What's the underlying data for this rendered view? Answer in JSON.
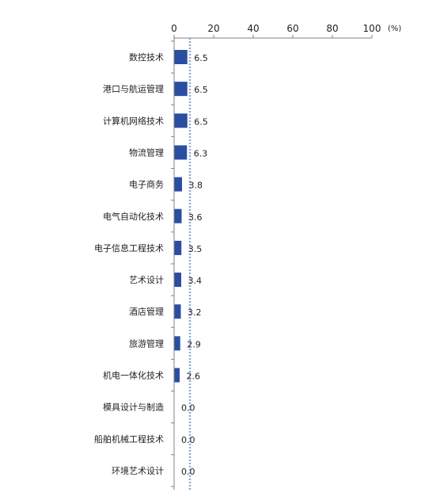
{
  "chart_data": {
    "type": "bar",
    "orientation": "horizontal",
    "axis_position": "top",
    "unit": "(%)",
    "xlim": [
      0,
      100
    ],
    "ticks": [
      0,
      20,
      40,
      60,
      80,
      100
    ],
    "categories": [
      "数控技术",
      "港口与航运管理",
      "计算机网络技术",
      "物流管理",
      "电子商务",
      "电气自动化技术",
      "电子信息工程技术",
      "艺术设计",
      "酒店管理",
      "旅游管理",
      "机电一体化技术",
      "模具设计与制造",
      "船舶机械工程技术",
      "环境艺术设计"
    ],
    "values": [
      6.5,
      6.5,
      6.5,
      6.3,
      3.8,
      3.6,
      3.5,
      3.4,
      3.2,
      2.9,
      2.6,
      0.0,
      0.0,
      0.0
    ],
    "value_labels": [
      "6.5",
      "6.5",
      "6.5",
      "6.3",
      "3.8",
      "3.6",
      "3.5",
      "3.4",
      "3.2",
      "2.9",
      "2.6",
      "0.0",
      "0.0",
      "0.0"
    ],
    "reference_line": {
      "value": 8,
      "style": "dotted"
    },
    "grid": false,
    "legend": "none",
    "colors": {
      "bar": "#2B4EA2",
      "reference": "#8EA9D6",
      "axis": "#808080"
    }
  }
}
